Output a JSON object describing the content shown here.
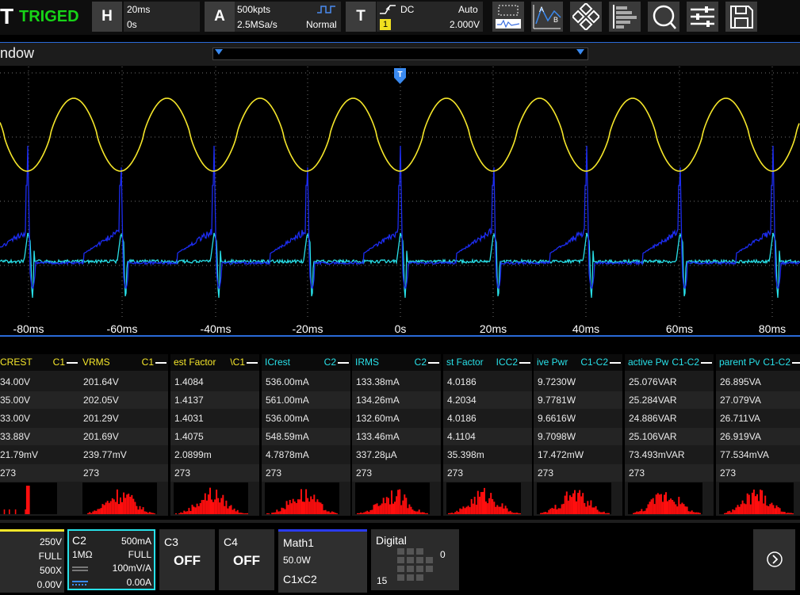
{
  "top_bar": {
    "logo_text": "T",
    "status": "TRIGED",
    "horizontal": {
      "button": "H",
      "timebase": "20ms",
      "delay": "0s"
    },
    "acquire": {
      "button": "A",
      "points": "500kpts",
      "rate": "2.5MSa/s",
      "mode": "Normal"
    },
    "trigger": {
      "button": "T",
      "coupling": "DC",
      "mode": "Auto",
      "source": "1",
      "level": "2.000V"
    },
    "icons": [
      "measure-icon",
      "cursor-icon",
      "analysis-icon",
      "histogram-icon",
      "search-icon",
      "settings-icon",
      "save-icon"
    ]
  },
  "window_bar": {
    "label": "ndow"
  },
  "waveform": {
    "trigger_marker": "T",
    "x_ticks": [
      "-80ms",
      "-60ms",
      "-40ms",
      "-20ms",
      "0s",
      "20ms",
      "40ms",
      "60ms",
      "80ms"
    ],
    "colors": {
      "ch1": "#f5e62a",
      "ch2": "#28e0e8",
      "math": "#1c2cf0",
      "grid": "#6f6f6f"
    }
  },
  "measurements": {
    "columns": [
      {
        "name": "CREST",
        "src": "C1",
        "color": "#f5e62a",
        "values": [
          "34.00V",
          "35.00V",
          "33.00V",
          "33.88V",
          "21.79mV",
          "273"
        ]
      },
      {
        "name": "VRMS",
        "src": "C1",
        "color": "#f5e62a",
        "values": [
          "201.64V",
          "202.05V",
          "201.29V",
          "201.69V",
          "239.77mV",
          "273"
        ]
      },
      {
        "name": "est Factor",
        "src": "\\C1",
        "color": "#f5e62a",
        "values": [
          "1.4084",
          "1.4137",
          "1.4031",
          "1.4075",
          "2.0899m",
          "273"
        ]
      },
      {
        "name": "ICrest",
        "src": "C2",
        "color": "#28e0e8",
        "values": [
          "536.00mA",
          "561.00mA",
          "536.00mA",
          "548.59mA",
          "4.7878mA",
          "273"
        ]
      },
      {
        "name": "IRMS",
        "src": "C2",
        "color": "#28e0e8",
        "values": [
          "133.38mA",
          "134.26mA",
          "132.60mA",
          "133.46mA",
          "337.28µA",
          "273"
        ]
      },
      {
        "name": "st Factor",
        "src": "ICC2",
        "color": "#28e0e8",
        "values": [
          "4.0186",
          "4.2034",
          "4.0186",
          "4.1104",
          "35.398m",
          "273"
        ]
      },
      {
        "name": "ive Pwr",
        "src": "C1-C2",
        "color": "#28e0e8",
        "values": [
          "9.7230W",
          "9.7781W",
          "9.6616W",
          "9.7098W",
          "17.472mW",
          "273"
        ]
      },
      {
        "name": "active Pw",
        "src": "C1-C2",
        "color": "#28e0e8",
        "values": [
          "25.076VAR",
          "25.284VAR",
          "24.886VAR",
          "25.106VAR",
          "73.493mVAR",
          "273"
        ]
      },
      {
        "name": "parent Pv",
        "src": "C1-C2",
        "color": "#28e0e8",
        "values": [
          "26.895VA",
          "27.079VA",
          "26.711VA",
          "26.919VA",
          "77.534mVA",
          "273"
        ]
      }
    ]
  },
  "channels": {
    "c1": {
      "scale": "250V",
      "bw": "FULL",
      "probe": "500X",
      "offset": "0.00V"
    },
    "c2": {
      "label": "C2",
      "impedance": "1MΩ",
      "scale": "500mA",
      "bw": "FULL",
      "probe": "100mV/A",
      "offset": "0.00A"
    },
    "c3": {
      "label": "C3",
      "state": "OFF"
    },
    "c4": {
      "label": "C4",
      "state": "OFF"
    },
    "math": {
      "label": "Math1",
      "scale": "50.0W",
      "expr": "C1xC2"
    },
    "digital": {
      "label": "Digital",
      "low": "0",
      "high": "15"
    }
  }
}
